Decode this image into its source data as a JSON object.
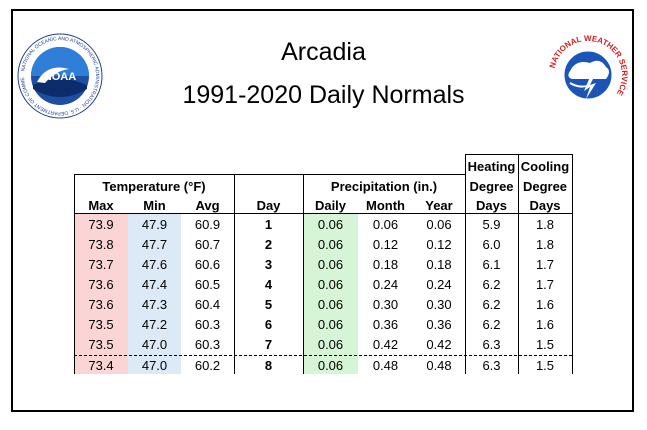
{
  "header": {
    "location": "Arcadia",
    "subtitle": "1991-2020 Daily Normals"
  },
  "logos": {
    "left": {
      "icon": "noaa-logo",
      "ring_text": "NATIONAL OCEANIC AND ATMOSPHERIC ADMINISTRATION · U.S. DEPARTMENT OF COMMERCE",
      "center_text": "NOAA"
    },
    "right": {
      "icon": "nws-logo",
      "ring_text": "NATIONAL WEATHER SERVICE"
    }
  },
  "table": {
    "group_headers": {
      "temperature": "Temperature (°F)",
      "precipitation": "Precipitation (in.)",
      "heating_line1": "Heating",
      "heating_line2": "Degree",
      "cooling_line1": "Cooling",
      "cooling_line2": "Degree"
    },
    "columns": {
      "max": "Max",
      "min": "Min",
      "avg": "Avg",
      "day": "Day",
      "daily": "Daily",
      "month": "Month",
      "year": "Year",
      "hdd": "Days",
      "cdd": "Days"
    },
    "rows": [
      {
        "max": "73.9",
        "min": "47.9",
        "avg": "60.9",
        "day": "1",
        "daily": "0.06",
        "month": "0.06",
        "year": "0.06",
        "hdd": "5.9",
        "cdd": "1.8"
      },
      {
        "max": "73.8",
        "min": "47.7",
        "avg": "60.7",
        "day": "2",
        "daily": "0.06",
        "month": "0.12",
        "year": "0.12",
        "hdd": "6.0",
        "cdd": "1.8"
      },
      {
        "max": "73.7",
        "min": "47.6",
        "avg": "60.6",
        "day": "3",
        "daily": "0.06",
        "month": "0.18",
        "year": "0.18",
        "hdd": "6.1",
        "cdd": "1.7"
      },
      {
        "max": "73.6",
        "min": "47.4",
        "avg": "60.5",
        "day": "4",
        "daily": "0.06",
        "month": "0.24",
        "year": "0.24",
        "hdd": "6.2",
        "cdd": "1.7"
      },
      {
        "max": "73.6",
        "min": "47.3",
        "avg": "60.4",
        "day": "5",
        "daily": "0.06",
        "month": "0.30",
        "year": "0.30",
        "hdd": "6.2",
        "cdd": "1.6"
      },
      {
        "max": "73.5",
        "min": "47.2",
        "avg": "60.3",
        "day": "6",
        "daily": "0.06",
        "month": "0.36",
        "year": "0.36",
        "hdd": "6.2",
        "cdd": "1.6"
      },
      {
        "max": "73.5",
        "min": "47.0",
        "avg": "60.3",
        "day": "7",
        "daily": "0.06",
        "month": "0.42",
        "year": "0.42",
        "hdd": "6.3",
        "cdd": "1.5"
      },
      {
        "max": "73.4",
        "min": "47.0",
        "avg": "60.2",
        "day": "8",
        "daily": "0.06",
        "month": "0.48",
        "year": "0.48",
        "hdd": "6.3",
        "cdd": "1.5"
      }
    ],
    "colors": {
      "max_band": "#fbd5d5",
      "min_band": "#dce9f6",
      "daily_band": "#d6f5d6"
    }
  }
}
